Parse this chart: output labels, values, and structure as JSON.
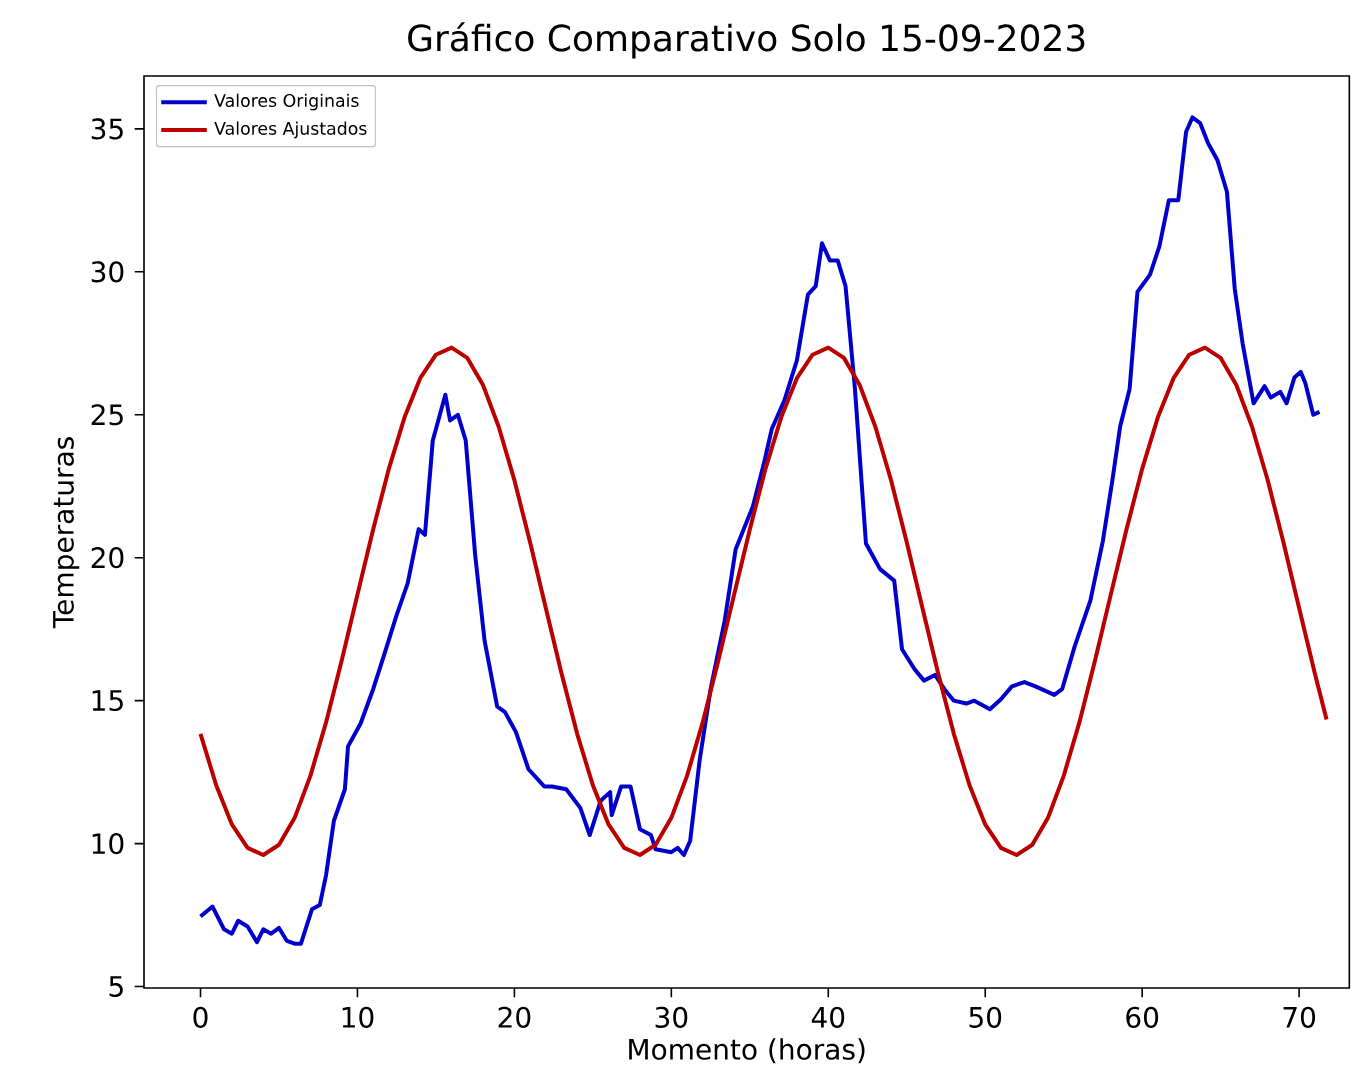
{
  "chart_data": {
    "type": "line",
    "title": "Gráfico Comparativo Solo 15-09-2023",
    "xlabel": "Momento (horas)",
    "ylabel": "Temperaturas",
    "xlim": [
      -3.6,
      73.2
    ],
    "ylim": [
      4.95,
      36.85
    ],
    "xticks": [
      0,
      10,
      20,
      30,
      40,
      50,
      60,
      70
    ],
    "yticks": [
      5,
      10,
      15,
      20,
      25,
      30,
      35
    ],
    "legend": "top left",
    "marker": "none",
    "line_style": "solid",
    "series": [
      {
        "name": "Valores Originais",
        "color": "#0000cc",
        "x": [
          0,
          0.76,
          1.5,
          2,
          2.4,
          3,
          3.6,
          4,
          4.5,
          5,
          5.5,
          6,
          6.4,
          7.1,
          7.6,
          8,
          8.5,
          9.2,
          9.4,
          10.2,
          11,
          11.7,
          12.5,
          13.2,
          13.9,
          14.3,
          14.8,
          15.6,
          15.9,
          16.4,
          16.9,
          17.5,
          18.1,
          18.9,
          19.4,
          20.1,
          20.9,
          21.9,
          22.4,
          23.3,
          24.2,
          24.8,
          25.5,
          26.1,
          26.2,
          26.8,
          27.4,
          28,
          28.7,
          29,
          30,
          30.4,
          30.8,
          31.2,
          31.8,
          32.5,
          33.4,
          34.1,
          35.2,
          35.9,
          36.4,
          37.2,
          38,
          38.7,
          39.2,
          39.6,
          40.1,
          40.6,
          41.1,
          41.7,
          42.4,
          43.3,
          44.2,
          44.7,
          45.5,
          46.1,
          46.8,
          47.4,
          48,
          48.8,
          49.3,
          50.3,
          51,
          51.7,
          52.5,
          53.2,
          54.4,
          54.9,
          55.7,
          56.7,
          57.5,
          58.1,
          58.6,
          59.2,
          59.7,
          60.5,
          61.1,
          61.7,
          62.3,
          62.8,
          63.2,
          63.7,
          64.2,
          64.8,
          65.4,
          65.9,
          66.4,
          67.1,
          67.8,
          68.2,
          68.8,
          69.2,
          69.7,
          70.1,
          70.4,
          70.9,
          71.3
        ],
        "values": [
          7.45,
          7.8,
          7.0,
          6.85,
          7.3,
          7.1,
          6.55,
          7.0,
          6.85,
          7.05,
          6.6,
          6.5,
          6.5,
          7.7,
          7.85,
          8.9,
          10.8,
          11.9,
          13.4,
          14.2,
          15.4,
          16.6,
          18.0,
          19.1,
          21.0,
          20.8,
          24.1,
          25.7,
          24.8,
          25.0,
          24.1,
          20.1,
          17.1,
          14.8,
          14.6,
          13.9,
          12.6,
          12.0,
          12.0,
          11.9,
          11.25,
          10.3,
          11.5,
          11.8,
          11.0,
          12.0,
          12.0,
          10.5,
          10.3,
          9.8,
          9.7,
          9.85,
          9.6,
          10.1,
          12.9,
          15.4,
          17.8,
          20.3,
          21.8,
          23.3,
          24.5,
          25.5,
          26.9,
          29.2,
          29.5,
          31.0,
          30.4,
          30.4,
          29.5,
          25.9,
          20.5,
          19.6,
          19.2,
          16.8,
          16.1,
          15.7,
          15.9,
          15.4,
          15.0,
          14.9,
          15.0,
          14.7,
          15.05,
          15.5,
          15.65,
          15.5,
          15.2,
          15.4,
          16.9,
          18.5,
          20.6,
          22.7,
          24.6,
          25.9,
          29.3,
          29.9,
          30.9,
          32.5,
          32.5,
          34.9,
          35.4,
          35.2,
          34.5,
          33.9,
          32.8,
          29.4,
          27.5,
          25.4,
          26.0,
          25.6,
          25.8,
          25.4,
          26.3,
          26.5,
          26.1,
          25.0,
          25.1
        ]
      },
      {
        "name": "Valores Ajustados",
        "color": "#bb0000",
        "x": [
          0,
          1,
          2,
          3,
          4,
          5,
          6,
          7,
          8,
          9,
          10,
          11,
          12,
          13,
          14,
          15,
          16,
          17,
          18,
          19,
          20,
          21,
          22,
          23,
          24,
          25,
          26,
          27,
          28,
          29,
          30,
          31,
          32,
          33,
          34,
          35,
          36,
          37,
          38,
          39,
          40,
          41,
          42,
          43,
          44,
          45,
          46,
          47,
          48,
          49,
          50,
          51,
          52,
          53,
          54,
          55,
          56,
          57,
          58,
          59,
          60,
          61,
          62,
          63,
          64,
          65,
          66,
          67,
          68,
          69,
          70,
          71,
          71.75
        ],
        "values": [
          13.84,
          12.04,
          10.67,
          9.85,
          9.6,
          9.96,
          10.9,
          12.37,
          14.24,
          16.41,
          18.71,
          20.99,
          23.11,
          24.91,
          26.28,
          27.1,
          27.35,
          26.99,
          26.04,
          24.58,
          22.71,
          20.54,
          18.24,
          15.96,
          13.84,
          12.04,
          10.67,
          9.85,
          9.6,
          9.96,
          10.9,
          12.37,
          14.24,
          16.41,
          18.71,
          20.99,
          23.11,
          24.91,
          26.28,
          27.1,
          27.35,
          26.99,
          26.04,
          24.58,
          22.71,
          20.54,
          18.24,
          15.96,
          13.84,
          12.04,
          10.67,
          9.85,
          9.6,
          9.96,
          10.9,
          12.37,
          14.24,
          16.41,
          18.71,
          20.99,
          23.11,
          24.91,
          26.28,
          27.1,
          27.35,
          26.99,
          26.04,
          24.58,
          22.71,
          20.54,
          18.24,
          15.96,
          14.34
        ]
      }
    ]
  }
}
